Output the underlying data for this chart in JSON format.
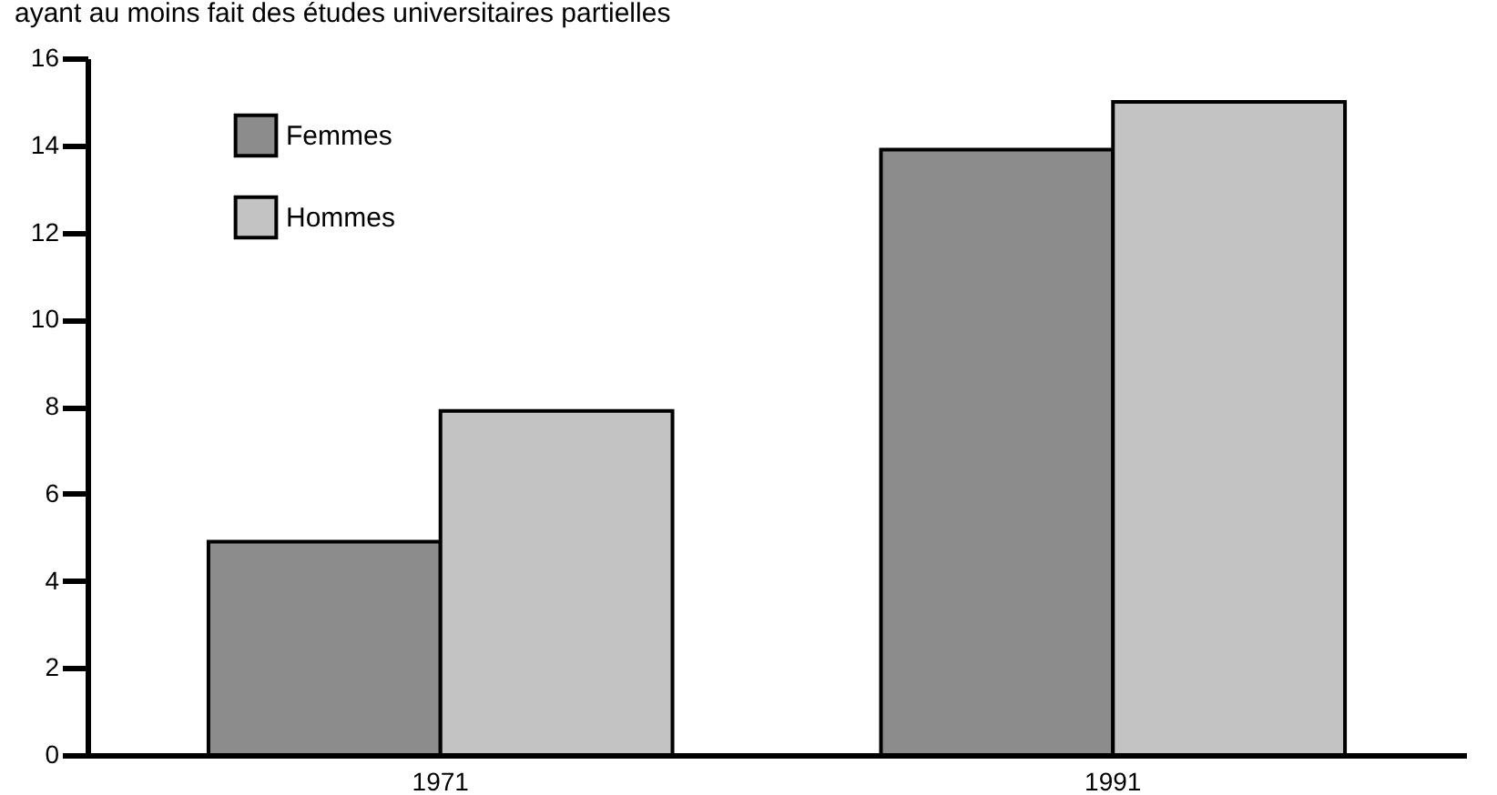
{
  "chart_data": {
    "type": "bar",
    "title": "ayant au moins fait des études universitaires partielles",
    "categories": [
      "1971",
      "1991"
    ],
    "series": [
      {
        "name": "Femmes",
        "color": "#8c8c8c",
        "values": [
          4.9,
          13.9
        ]
      },
      {
        "name": "Hommes",
        "color": "#c3c3c3",
        "values": [
          7.9,
          15
        ]
      }
    ],
    "ylim": [
      0,
      16
    ],
    "yticks": [
      0,
      2,
      4,
      6,
      8,
      10,
      12,
      14,
      16
    ],
    "grid": false,
    "legend": "top left"
  }
}
